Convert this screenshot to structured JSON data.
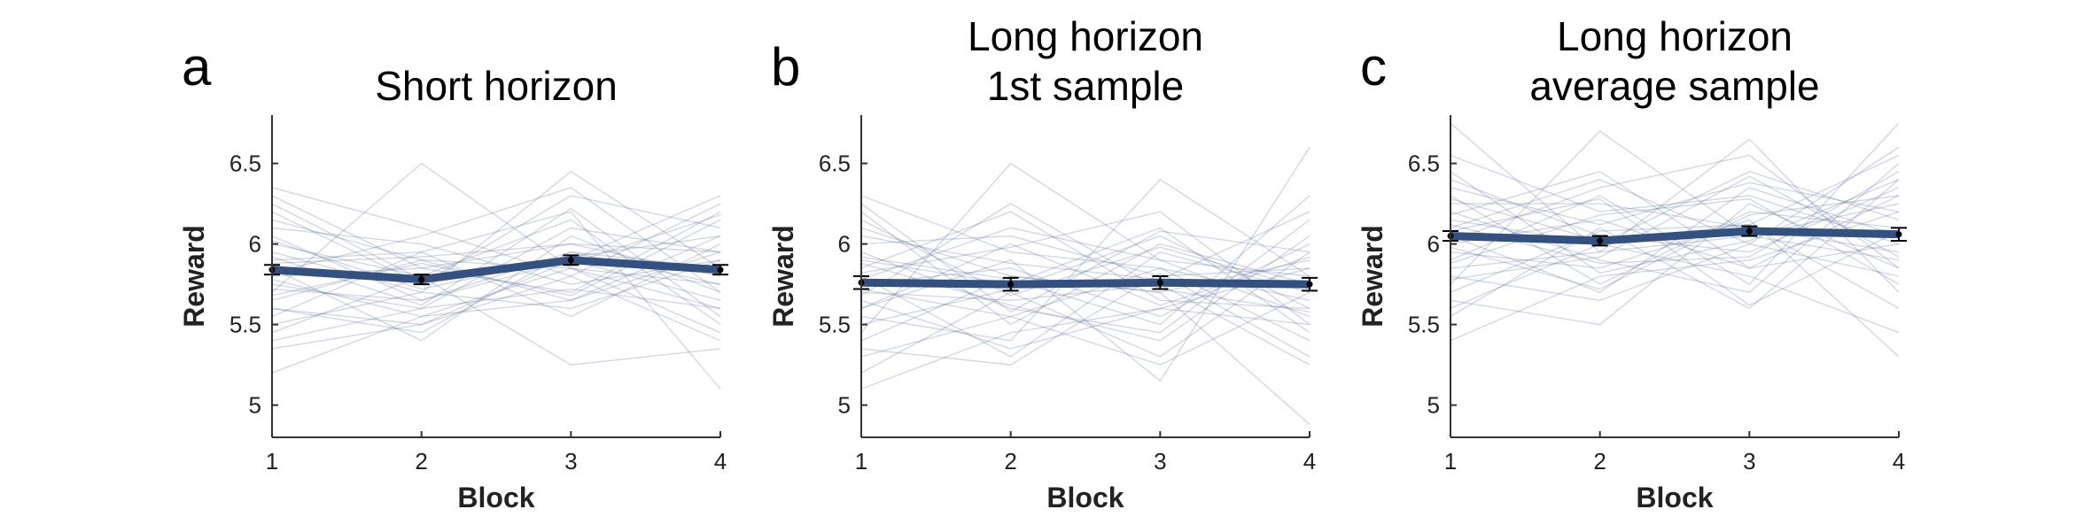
{
  "colors": {
    "mean": "#34507e",
    "subject": "#5a6f9a",
    "errorbar": "#000000"
  },
  "chart_data": [
    {
      "type": "line",
      "panel_letter": "a",
      "title": "Short horizon",
      "xlabel": "Block",
      "ylabel": "Reward",
      "x": [
        1,
        2,
        3,
        4
      ],
      "xlim": [
        1,
        4
      ],
      "ylim": [
        4.8,
        6.8
      ],
      "yticks": [
        5,
        5.5,
        6,
        6.5
      ],
      "ytick_labels": [
        "5",
        "5.5",
        "6",
        "6.5"
      ],
      "grid": false,
      "mean": [
        5.84,
        5.78,
        5.9,
        5.84
      ],
      "sem": [
        0.03,
        0.03,
        0.03,
        0.03
      ],
      "subjects": [
        [
          5.2,
          5.55,
          5.65,
          6.05
        ],
        [
          5.35,
          5.5,
          5.8,
          5.4
        ],
        [
          5.5,
          5.7,
          5.6,
          5.9
        ],
        [
          5.6,
          5.45,
          5.95,
          5.75
        ],
        [
          5.65,
          5.9,
          5.85,
          5.6
        ],
        [
          5.7,
          6.5,
          5.85,
          5.45
        ],
        [
          5.75,
          5.6,
          6.1,
          5.95
        ],
        [
          5.8,
          5.85,
          5.7,
          6.2
        ],
        [
          5.85,
          5.4,
          6.05,
          5.7
        ],
        [
          5.9,
          5.95,
          5.55,
          6.0
        ],
        [
          5.95,
          5.7,
          6.45,
          5.85
        ],
        [
          6.0,
          5.8,
          6.15,
          5.5
        ],
        [
          6.05,
          5.65,
          5.9,
          6.3
        ],
        [
          6.1,
          6.0,
          5.75,
          5.9
        ],
        [
          6.2,
          5.75,
          6.3,
          6.1
        ],
        [
          6.3,
          5.85,
          6.0,
          5.95
        ],
        [
          6.35,
          6.1,
          5.8,
          6.25
        ],
        [
          5.45,
          5.8,
          5.25,
          5.35
        ],
        [
          5.55,
          5.95,
          6.2,
          5.1
        ],
        [
          5.6,
          5.5,
          5.9,
          5.65
        ],
        [
          5.72,
          5.65,
          5.95,
          5.85
        ],
        [
          5.78,
          5.55,
          5.85,
          5.75
        ],
        [
          5.88,
          5.92,
          6.0,
          5.8
        ],
        [
          6.02,
          5.72,
          5.92,
          6.05
        ],
        [
          5.68,
          5.88,
          5.68,
          6.15
        ],
        [
          5.92,
          5.62,
          6.22,
          5.55
        ],
        [
          6.15,
          5.9,
          5.65,
          5.95
        ],
        [
          5.4,
          5.6,
          5.72,
          5.6
        ],
        [
          5.82,
          6.05,
          6.35,
          5.7
        ],
        [
          6.25,
          5.78,
          5.88,
          6.18
        ]
      ]
    },
    {
      "type": "line",
      "panel_letter": "b",
      "title": "Long horizon\n1st sample",
      "xlabel": "Block",
      "ylabel": "Reward",
      "x": [
        1,
        2,
        3,
        4
      ],
      "xlim": [
        1,
        4
      ],
      "ylim": [
        4.8,
        6.8
      ],
      "yticks": [
        5,
        5.5,
        6,
        6.5
      ],
      "ytick_labels": [
        "5",
        "5.5",
        "6",
        "6.5"
      ],
      "grid": false,
      "mean": [
        5.76,
        5.75,
        5.76,
        5.75
      ],
      "sem": [
        0.04,
        0.04,
        0.04,
        0.04
      ],
      "subjects": [
        [
          5.1,
          5.45,
          5.6,
          5.85
        ],
        [
          5.2,
          5.7,
          5.3,
          5.95
        ],
        [
          5.3,
          5.55,
          5.85,
          5.4
        ],
        [
          5.45,
          6.5,
          5.9,
          5.55
        ],
        [
          5.55,
          5.4,
          6.4,
          5.8
        ],
        [
          5.6,
          5.9,
          5.15,
          6.6
        ],
        [
          5.7,
          5.65,
          5.75,
          5.25
        ],
        [
          5.75,
          5.85,
          5.55,
          6.0
        ],
        [
          5.8,
          5.3,
          5.95,
          5.7
        ],
        [
          5.85,
          6.2,
          5.65,
          5.6
        ],
        [
          5.9,
          5.75,
          6.1,
          5.45
        ],
        [
          5.95,
          5.6,
          5.45,
          6.15
        ],
        [
          6.0,
          6.05,
          5.8,
          5.85
        ],
        [
          6.1,
          5.8,
          5.7,
          4.88
        ],
        [
          6.2,
          5.5,
          6.0,
          5.75
        ],
        [
          6.3,
          5.95,
          5.85,
          5.65
        ],
        [
          5.4,
          5.8,
          5.7,
          5.9
        ],
        [
          5.65,
          5.35,
          5.6,
          5.5
        ],
        [
          5.78,
          6.1,
          5.9,
          5.8
        ],
        [
          5.88,
          5.62,
          5.4,
          6.05
        ],
        [
          5.5,
          5.72,
          6.05,
          5.6
        ],
        [
          6.05,
          5.88,
          5.78,
          6.2
        ],
        [
          5.72,
          5.55,
          5.25,
          5.7
        ],
        [
          5.82,
          5.98,
          6.2,
          5.5
        ],
        [
          5.6,
          6.0,
          5.62,
          5.92
        ],
        [
          6.15,
          5.68,
          5.98,
          5.72
        ],
        [
          5.35,
          5.25,
          5.82,
          5.3
        ],
        [
          5.92,
          5.78,
          5.5,
          6.3
        ],
        [
          5.68,
          6.25,
          5.72,
          5.58
        ],
        [
          6.25,
          5.58,
          6.08,
          5.95
        ]
      ]
    },
    {
      "type": "line",
      "panel_letter": "c",
      "title": "Long horizon\naverage sample",
      "xlabel": "Block",
      "ylabel": "Reward",
      "x": [
        1,
        2,
        3,
        4
      ],
      "xlim": [
        1,
        4
      ],
      "ylim": [
        4.8,
        6.8
      ],
      "yticks": [
        5,
        5.5,
        6,
        6.5
      ],
      "ytick_labels": [
        "5",
        "5.5",
        "6",
        "6.5"
      ],
      "grid": false,
      "mean": [
        6.05,
        6.02,
        6.08,
        6.06
      ],
      "sem": [
        0.03,
        0.03,
        0.03,
        0.04
      ],
      "subjects": [
        [
          5.4,
          5.8,
          5.9,
          6.2
        ],
        [
          5.55,
          6.1,
          5.6,
          6.4
        ],
        [
          5.65,
          5.5,
          6.25,
          5.85
        ],
        [
          5.75,
          6.7,
          6.05,
          5.9
        ],
        [
          5.85,
          5.95,
          6.65,
          5.7
        ],
        [
          5.9,
          6.3,
          5.75,
          6.75
        ],
        [
          5.95,
          5.85,
          6.15,
          5.3
        ],
        [
          6.0,
          6.15,
          5.85,
          6.3
        ],
        [
          6.05,
          5.7,
          6.35,
          6.05
        ],
        [
          6.1,
          6.4,
          6.0,
          5.8
        ],
        [
          6.15,
          6.0,
          6.45,
          6.15
        ],
        [
          6.2,
          5.9,
          5.7,
          6.5
        ],
        [
          6.25,
          6.25,
          6.1,
          5.95
        ],
        [
          6.3,
          5.75,
          6.2,
          6.1
        ],
        [
          6.4,
          6.05,
          5.95,
          6.35
        ],
        [
          6.55,
          6.2,
          6.3,
          6.0
        ],
        [
          6.75,
          5.95,
          6.05,
          6.25
        ],
        [
          5.6,
          6.0,
          5.8,
          5.45
        ],
        [
          5.8,
          5.65,
          6.0,
          6.6
        ],
        [
          6.02,
          6.35,
          6.55,
          5.85
        ],
        [
          6.12,
          5.88,
          5.92,
          6.45
        ],
        [
          5.7,
          6.08,
          6.12,
          5.6
        ],
        [
          6.35,
          6.12,
          6.38,
          6.2
        ],
        [
          5.98,
          5.72,
          6.18,
          6.3
        ],
        [
          6.18,
          6.45,
          5.85,
          6.0
        ],
        [
          5.88,
          6.18,
          6.28,
          5.75
        ],
        [
          6.45,
          5.82,
          6.02,
          6.4
        ],
        [
          6.08,
          6.28,
          5.62,
          6.08
        ],
        [
          5.78,
          5.92,
          6.42,
          5.92
        ],
        [
          6.28,
          6.02,
          6.12,
          6.55
        ]
      ]
    }
  ]
}
